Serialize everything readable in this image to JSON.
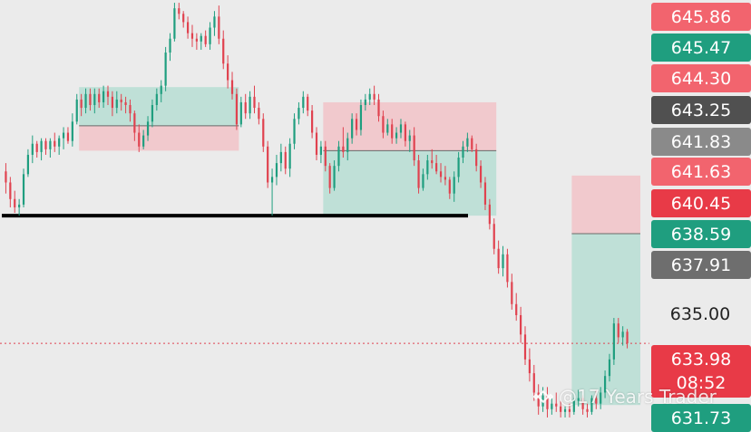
{
  "chart_data": {
    "type": "candlestick",
    "title": "",
    "xlabel": "",
    "ylabel": "",
    "ylim": [
      631.2,
      646.4
    ],
    "grid": false,
    "colors": {
      "up": "#1f9e7f",
      "down": "#e0424f",
      "profit_zone": "#bfe0d7",
      "loss_zone": "#f1c9cd",
      "level_line": "#000000",
      "current_price_line": "#e0424f"
    },
    "axis_ticks": [
      {
        "label": "635.00",
        "value": 635.0
      }
    ],
    "price_tags": [
      {
        "label": "645.86",
        "value": 645.86,
        "color": "#f2646e"
      },
      {
        "label": "645.47",
        "value": 645.47,
        "color": "#1f9e7f"
      },
      {
        "label": "644.30",
        "value": 644.3,
        "color": "#f2646e"
      },
      {
        "label": "643.25",
        "value": 643.25,
        "color": "#505050"
      },
      {
        "label": "641.83",
        "value": 641.83,
        "color": "#8a8a8a"
      },
      {
        "label": "641.63",
        "value": 641.63,
        "color": "#f2646e"
      },
      {
        "label": "640.45",
        "value": 640.45,
        "color": "#e83a47"
      },
      {
        "label": "638.59",
        "value": 638.59,
        "color": "#1f9e7f"
      },
      {
        "label": "637.91",
        "value": 637.91,
        "color": "#6e6e6e"
      },
      {
        "label": "633.98",
        "value": 633.98,
        "color": "#e83a47",
        "countdown": "08:52"
      },
      {
        "label": "631.73",
        "value": 631.73,
        "color": "#1f9e7f"
      }
    ],
    "horizontal_level": 638.6,
    "current_price": 633.98,
    "positions": [
      {
        "entry": 641.85,
        "profit_to": 643.25,
        "loss_to": 640.95
      },
      {
        "entry": 640.95,
        "profit_to": 638.6,
        "loss_to": 642.7
      },
      {
        "entry": 637.95,
        "profit_to": 631.75,
        "loss_to": 640.05
      }
    ],
    "candles": [
      [
        640.2,
        640.5,
        639.4,
        639.8
      ],
      [
        639.8,
        640.0,
        638.9,
        639.2
      ],
      [
        639.2,
        639.5,
        638.7,
        638.9
      ],
      [
        638.9,
        639.2,
        638.6,
        639.0
      ],
      [
        639.0,
        640.3,
        638.9,
        640.1
      ],
      [
        640.1,
        641.0,
        640.0,
        640.8
      ],
      [
        640.8,
        641.5,
        640.5,
        641.2
      ],
      [
        641.2,
        641.3,
        640.7,
        640.9
      ],
      [
        640.9,
        641.4,
        640.6,
        641.3
      ],
      [
        641.3,
        641.4,
        640.8,
        641.0
      ],
      [
        641.0,
        641.4,
        640.7,
        641.3
      ],
      [
        641.3,
        641.6,
        640.9,
        641.1
      ],
      [
        641.1,
        641.5,
        640.8,
        641.4
      ],
      [
        641.4,
        641.8,
        641.0,
        641.6
      ],
      [
        641.6,
        641.8,
        641.2,
        641.3
      ],
      [
        641.3,
        642.3,
        641.1,
        642.0
      ],
      [
        642.0,
        643.0,
        641.9,
        642.8
      ],
      [
        642.8,
        643.0,
        642.2,
        642.5
      ],
      [
        642.5,
        643.2,
        642.3,
        643.0
      ],
      [
        643.0,
        643.2,
        642.4,
        642.6
      ],
      [
        642.6,
        643.2,
        642.3,
        643.0
      ],
      [
        643.0,
        643.2,
        642.5,
        642.7
      ],
      [
        642.7,
        643.3,
        642.5,
        643.1
      ],
      [
        643.1,
        643.3,
        642.6,
        642.9
      ],
      [
        642.9,
        643.1,
        642.2,
        642.5
      ],
      [
        642.5,
        643.1,
        642.3,
        642.8
      ],
      [
        642.8,
        643.0,
        642.4,
        642.7
      ],
      [
        642.7,
        642.9,
        642.3,
        642.6
      ],
      [
        642.6,
        642.8,
        642.0,
        642.3
      ],
      [
        642.3,
        642.4,
        641.3,
        641.6
      ],
      [
        641.6,
        641.9,
        640.9,
        641.1
      ],
      [
        641.1,
        641.7,
        641.0,
        641.5
      ],
      [
        641.5,
        642.2,
        641.3,
        642.0
      ],
      [
        642.0,
        642.8,
        641.8,
        642.6
      ],
      [
        642.6,
        643.2,
        642.4,
        643.0
      ],
      [
        643.0,
        643.5,
        642.7,
        643.3
      ],
      [
        643.3,
        644.7,
        643.1,
        644.5
      ],
      [
        644.5,
        645.2,
        644.2,
        645.0
      ],
      [
        645.0,
        646.3,
        644.9,
        646.1
      ],
      [
        646.1,
        646.3,
        645.7,
        645.9
      ],
      [
        645.9,
        646.0,
        645.4,
        645.6
      ],
      [
        645.6,
        645.8,
        645.0,
        645.2
      ],
      [
        645.2,
        645.5,
        644.7,
        645.0
      ],
      [
        645.0,
        645.2,
        644.6,
        644.9
      ],
      [
        644.9,
        645.2,
        644.6,
        645.1
      ],
      [
        645.1,
        645.3,
        644.7,
        644.8
      ],
      [
        644.8,
        645.6,
        644.6,
        645.4
      ],
      [
        645.4,
        646.0,
        645.1,
        645.8
      ],
      [
        645.8,
        646.2,
        644.8,
        645.0
      ],
      [
        645.0,
        645.3,
        643.9,
        644.1
      ],
      [
        644.1,
        644.4,
        643.2,
        643.5
      ],
      [
        643.5,
        643.8,
        642.8,
        643.0
      ],
      [
        643.0,
        643.2,
        641.7,
        641.9
      ],
      [
        641.9,
        642.9,
        641.8,
        642.7
      ],
      [
        642.7,
        643.0,
        642.1,
        642.3
      ],
      [
        642.3,
        643.1,
        642.1,
        642.9
      ],
      [
        642.9,
        643.3,
        642.3,
        642.5
      ],
      [
        642.5,
        642.7,
        641.9,
        642.1
      ],
      [
        642.1,
        642.3,
        640.9,
        641.1
      ],
      [
        641.1,
        641.3,
        639.6,
        639.8
      ],
      [
        639.8,
        640.3,
        638.6,
        640.0
      ],
      [
        640.0,
        640.8,
        639.7,
        640.5
      ],
      [
        640.5,
        641.2,
        640.2,
        640.9
      ],
      [
        640.9,
        641.1,
        640.1,
        640.3
      ],
      [
        640.3,
        641.4,
        640.0,
        641.2
      ],
      [
        641.2,
        642.3,
        641.0,
        642.1
      ],
      [
        642.1,
        642.7,
        641.9,
        642.5
      ],
      [
        642.5,
        643.1,
        642.3,
        642.9
      ],
      [
        642.9,
        643.0,
        642.2,
        642.4
      ],
      [
        642.4,
        642.6,
        641.4,
        641.6
      ],
      [
        641.6,
        641.8,
        640.6,
        640.8
      ],
      [
        640.8,
        641.3,
        640.5,
        641.1
      ],
      [
        641.1,
        641.3,
        640.2,
        640.4
      ],
      [
        640.4,
        640.5,
        639.4,
        639.6
      ],
      [
        639.6,
        640.6,
        639.5,
        640.4
      ],
      [
        640.4,
        641.3,
        640.2,
        641.1
      ],
      [
        641.1,
        641.8,
        640.7,
        640.9
      ],
      [
        640.9,
        641.6,
        640.6,
        641.4
      ],
      [
        641.4,
        642.3,
        641.2,
        642.1
      ],
      [
        642.1,
        642.3,
        641.5,
        641.7
      ],
      [
        641.7,
        642.8,
        641.5,
        642.6
      ],
      [
        642.6,
        643.0,
        642.4,
        642.8
      ],
      [
        642.8,
        643.2,
        642.6,
        643.0
      ],
      [
        643.0,
        643.3,
        642.6,
        642.8
      ],
      [
        642.8,
        643.0,
        642.0,
        642.2
      ],
      [
        642.2,
        642.4,
        641.4,
        641.6
      ],
      [
        641.6,
        642.1,
        641.5,
        641.9
      ],
      [
        641.9,
        642.1,
        641.2,
        641.4
      ],
      [
        641.4,
        641.8,
        641.2,
        641.6
      ],
      [
        641.6,
        642.1,
        641.4,
        641.9
      ],
      [
        641.9,
        642.0,
        641.1,
        641.3
      ],
      [
        641.3,
        641.7,
        640.9,
        641.5
      ],
      [
        641.5,
        641.8,
        640.4,
        640.6
      ],
      [
        640.6,
        640.8,
        639.4,
        639.6
      ],
      [
        639.6,
        640.3,
        639.5,
        640.1
      ],
      [
        640.1,
        640.8,
        639.9,
        640.6
      ],
      [
        640.6,
        641.0,
        640.3,
        640.5
      ],
      [
        640.5,
        640.8,
        640.1,
        640.2
      ],
      [
        640.2,
        640.5,
        639.8,
        640.0
      ],
      [
        640.0,
        640.4,
        639.7,
        639.9
      ],
      [
        639.9,
        640.0,
        639.2,
        639.4
      ],
      [
        639.4,
        640.2,
        639.1,
        640.0
      ],
      [
        640.0,
        640.9,
        639.8,
        640.7
      ],
      [
        640.7,
        641.3,
        640.5,
        641.1
      ],
      [
        641.1,
        641.6,
        640.9,
        641.4
      ],
      [
        641.4,
        641.5,
        640.9,
        641.0
      ],
      [
        641.0,
        641.2,
        640.2,
        640.4
      ],
      [
        640.4,
        640.6,
        639.6,
        639.8
      ],
      [
        639.8,
        640.0,
        638.8,
        639.0
      ],
      [
        639.0,
        639.2,
        638.1,
        638.3
      ],
      [
        638.3,
        638.5,
        637.2,
        637.4
      ],
      [
        637.4,
        637.7,
        636.5,
        636.7
      ],
      [
        636.7,
        637.5,
        636.4,
        637.2
      ],
      [
        637.2,
        637.4,
        636.0,
        636.2
      ],
      [
        636.2,
        636.5,
        635.2,
        635.4
      ],
      [
        635.4,
        635.8,
        634.8,
        635.0
      ],
      [
        635.0,
        635.3,
        634.0,
        634.3
      ],
      [
        634.3,
        634.6,
        633.2,
        633.4
      ],
      [
        633.4,
        633.8,
        632.6,
        632.9
      ],
      [
        632.9,
        633.2,
        631.9,
        632.2
      ],
      [
        632.2,
        632.5,
        631.4,
        631.7
      ],
      [
        631.7,
        632.4,
        631.5,
        632.1
      ],
      [
        632.1,
        632.4,
        631.3,
        631.6
      ],
      [
        631.6,
        632.0,
        631.4,
        631.8
      ],
      [
        631.8,
        632.2,
        631.5,
        631.7
      ],
      [
        631.7,
        631.9,
        631.3,
        631.5
      ],
      [
        631.5,
        631.7,
        631.3,
        631.6
      ],
      [
        631.6,
        631.8,
        631.3,
        631.5
      ],
      [
        631.5,
        632.0,
        631.4,
        631.9
      ],
      [
        631.9,
        632.3,
        631.7,
        632.0
      ],
      [
        632.0,
        632.1,
        631.4,
        631.6
      ],
      [
        631.6,
        631.8,
        631.3,
        631.5
      ],
      [
        631.5,
        632.1,
        631.4,
        632.0
      ],
      [
        632.0,
        632.3,
        631.6,
        631.8
      ],
      [
        631.8,
        632.4,
        631.6,
        632.2
      ],
      [
        632.2,
        633.0,
        632.0,
        632.8
      ],
      [
        632.8,
        633.6,
        632.6,
        633.4
      ],
      [
        633.4,
        634.9,
        633.2,
        634.7
      ],
      [
        634.7,
        634.9,
        634.0,
        634.2
      ],
      [
        634.2,
        634.6,
        633.9,
        634.4
      ],
      [
        634.4,
        634.5,
        633.8,
        633.98
      ]
    ]
  },
  "watermark": {
    "text": "@17 Years Trader",
    "logo": "binance-diamond-icon"
  }
}
